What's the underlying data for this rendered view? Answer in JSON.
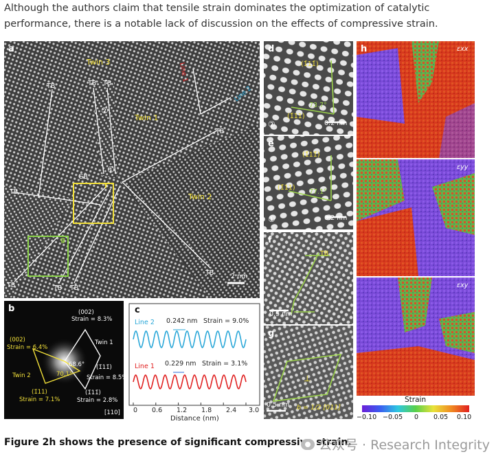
{
  "intro_text": "Although the authors claim that tensile strain dominates the optimization of catalytic performance, there is a notable lack of discussion on the effects of compressive strain.",
  "caption": "Figure 2h shows the presence of significant compressive strain.",
  "watermark": {
    "icon": "wechat-icon",
    "text": "公众号 · Research Integrity"
  },
  "panel_a": {
    "label": "a",
    "twin1": "Twin 1",
    "twin2": "Twin 2",
    "twin3": "Twin 3",
    "tb": "TB",
    "gb": "GB",
    "line1": "Line 1",
    "line2": "Line 2",
    "circ1": "①",
    "circ2": "②",
    "box_f": "f",
    "box_g": "g",
    "scale": "2 nm"
  },
  "panel_b": {
    "label": "b",
    "p002": "(002)",
    "s83": "Strain = 8.3%",
    "p002y": "(002)",
    "s64": "Strain = 6.4%",
    "twin1": "Twin 1",
    "twin2": "Twin 2",
    "angle1": "68.6°",
    "angle2": "70.1°",
    "p111a": "(1̄11̄)",
    "s85": "Strain = 8.5%",
    "p111b": "(1̄11)",
    "s71": "Strain = 7.1%",
    "p111c": "(1̄11̄)",
    "s28": "Strain = 2.8%",
    "zone": "[110]"
  },
  "panel_c": {
    "label": "c",
    "line2": "Line 2",
    "line1": "Line 1",
    "ann2_d": "0.242 nm",
    "ann2_s": "Strain = 9.0%",
    "ann1_d": "0.229 nm",
    "ann1_s": "Strain = 3.1%",
    "xticks": [
      "0",
      "0.6",
      "1.2",
      "1.8",
      "2.4",
      "3.0"
    ],
    "xlabel": "Distance (nm)",
    "line2_color": "#2aa7d8",
    "line1_color": "#e02020"
  },
  "panel_d": {
    "label": "d",
    "p1": "(1̄11̄)",
    "p2": "(1̄11)",
    "angle": "73.7°",
    "circ": "②",
    "scale": "0.2 nm"
  },
  "panel_e": {
    "label": "e",
    "p1": "(1̄11̄)",
    "p2": "(1̄11)",
    "angle": "77.1°",
    "circ": "①",
    "scale": "0.2 nm"
  },
  "panel_f": {
    "label": "f",
    "tb": "TB",
    "scale": "0.5 nm"
  },
  "panel_g": {
    "label": "g",
    "scale": "0.5 nm",
    "burgers": "b = 1/2 [011]"
  },
  "panel_h": {
    "label": "h",
    "map1": "εxx",
    "map2": "εyy",
    "map3": "εxy",
    "colorbar_title": "Strain",
    "colorbar_ticks": [
      "−0.10",
      "−0.05",
      "0",
      "0.05",
      "0.10"
    ]
  }
}
